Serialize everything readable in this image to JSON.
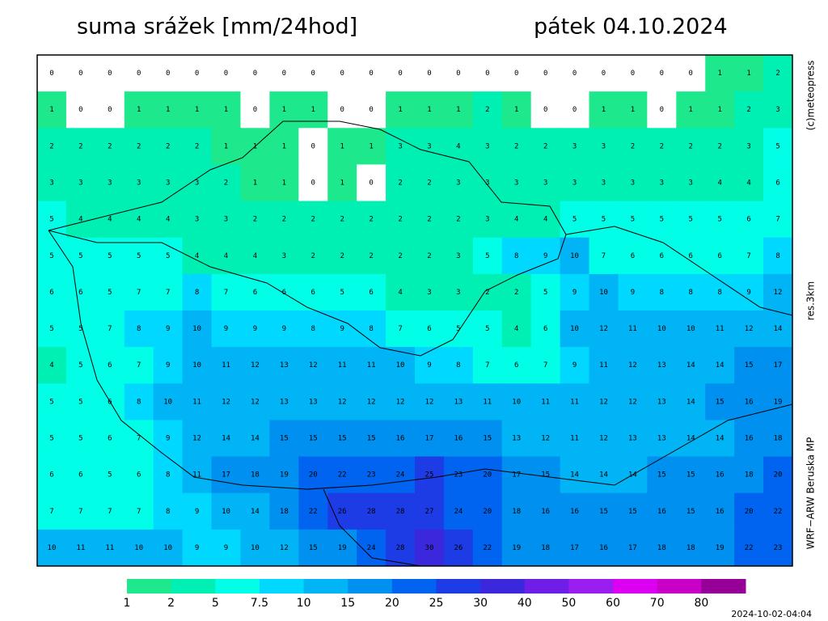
{
  "header": {
    "title": "suma srážek [mm/24hod]",
    "date": "pátek 04.10.2024"
  },
  "side_labels": [
    "(c)meteopress",
    "res.3km",
    "WRF−ARW Beruska MP"
  ],
  "grid": {
    "rows": [
      [
        0,
        0,
        0,
        0,
        0,
        0,
        0,
        0,
        0,
        0,
        0,
        0,
        0,
        0,
        0,
        0,
        0,
        0,
        0,
        0,
        0,
        0,
        0,
        1,
        1,
        2
      ],
      [
        1,
        0,
        0,
        1,
        1,
        1,
        1,
        0,
        1,
        1,
        0,
        0,
        1,
        1,
        1,
        2,
        1,
        0,
        0,
        1,
        1,
        0,
        1,
        1,
        2,
        3
      ],
      [
        2,
        2,
        2,
        2,
        2,
        2,
        1,
        1,
        1,
        0,
        1,
        1,
        3,
        3,
        4,
        3,
        2,
        2,
        3,
        3,
        2,
        2,
        2,
        2,
        3,
        5
      ],
      [
        3,
        3,
        3,
        3,
        3,
        3,
        2,
        1,
        1,
        0,
        1,
        0,
        2,
        2,
        3,
        3,
        3,
        3,
        3,
        3,
        3,
        3,
        3,
        4,
        4,
        6
      ],
      [
        5,
        4,
        4,
        4,
        4,
        3,
        3,
        2,
        2,
        2,
        2,
        2,
        2,
        2,
        2,
        3,
        4,
        4,
        5,
        5,
        5,
        5,
        5,
        5,
        6,
        7
      ],
      [
        5,
        5,
        5,
        5,
        5,
        4,
        4,
        4,
        3,
        2,
        2,
        2,
        2,
        2,
        3,
        5,
        8,
        9,
        10,
        7,
        6,
        6,
        6,
        6,
        7,
        8
      ],
      [
        6,
        6,
        5,
        7,
        7,
        8,
        7,
        6,
        6,
        6,
        5,
        6,
        4,
        3,
        3,
        2,
        2,
        5,
        9,
        10,
        9,
        8,
        8,
        8,
        9,
        12
      ],
      [
        5,
        5,
        7,
        8,
        9,
        10,
        9,
        9,
        9,
        8,
        9,
        8,
        7,
        6,
        5,
        5,
        4,
        6,
        10,
        12,
        11,
        10,
        10,
        11,
        12,
        14
      ],
      [
        4,
        5,
        6,
        7,
        9,
        10,
        11,
        12,
        13,
        12,
        11,
        11,
        10,
        9,
        8,
        7,
        6,
        7,
        9,
        11,
        12,
        13,
        14,
        14,
        15,
        17
      ],
      [
        5,
        5,
        6,
        8,
        10,
        11,
        12,
        12,
        13,
        13,
        12,
        12,
        12,
        12,
        13,
        11,
        10,
        11,
        11,
        12,
        12,
        13,
        14,
        15,
        16,
        19
      ],
      [
        5,
        5,
        6,
        7,
        9,
        12,
        14,
        14,
        15,
        15,
        15,
        15,
        16,
        17,
        16,
        15,
        13,
        12,
        11,
        12,
        13,
        13,
        14,
        14,
        16,
        18
      ],
      [
        6,
        6,
        5,
        6,
        8,
        11,
        17,
        18,
        19,
        20,
        22,
        23,
        24,
        25,
        23,
        20,
        17,
        15,
        14,
        14,
        14,
        15,
        15,
        16,
        18,
        20
      ],
      [
        7,
        7,
        7,
        7,
        8,
        9,
        10,
        14,
        18,
        22,
        26,
        28,
        28,
        27,
        24,
        20,
        18,
        16,
        16,
        15,
        15,
        16,
        15,
        16,
        20,
        22
      ],
      [
        10,
        11,
        11,
        10,
        10,
        9,
        9,
        10,
        12,
        15,
        19,
        24,
        28,
        30,
        26,
        22,
        19,
        18,
        17,
        16,
        17,
        18,
        18,
        19,
        22,
        23
      ]
    ]
  },
  "legend": {
    "levels": [
      1,
      2,
      5,
      7.5,
      10,
      15,
      20,
      25,
      30,
      40,
      50,
      60,
      70,
      80
    ],
    "colors": [
      "#1ee88c",
      "#00f0b4",
      "#00ffe6",
      "#00d8ff",
      "#00b4f5",
      "#0090f0",
      "#0064f0",
      "#1e3ce6",
      "#3c28dc",
      "#6e1ee6",
      "#9a1ef0",
      "#dc00f0",
      "#c800c8",
      "#960096"
    ]
  },
  "timestamp": "2024-10-02-04:04"
}
